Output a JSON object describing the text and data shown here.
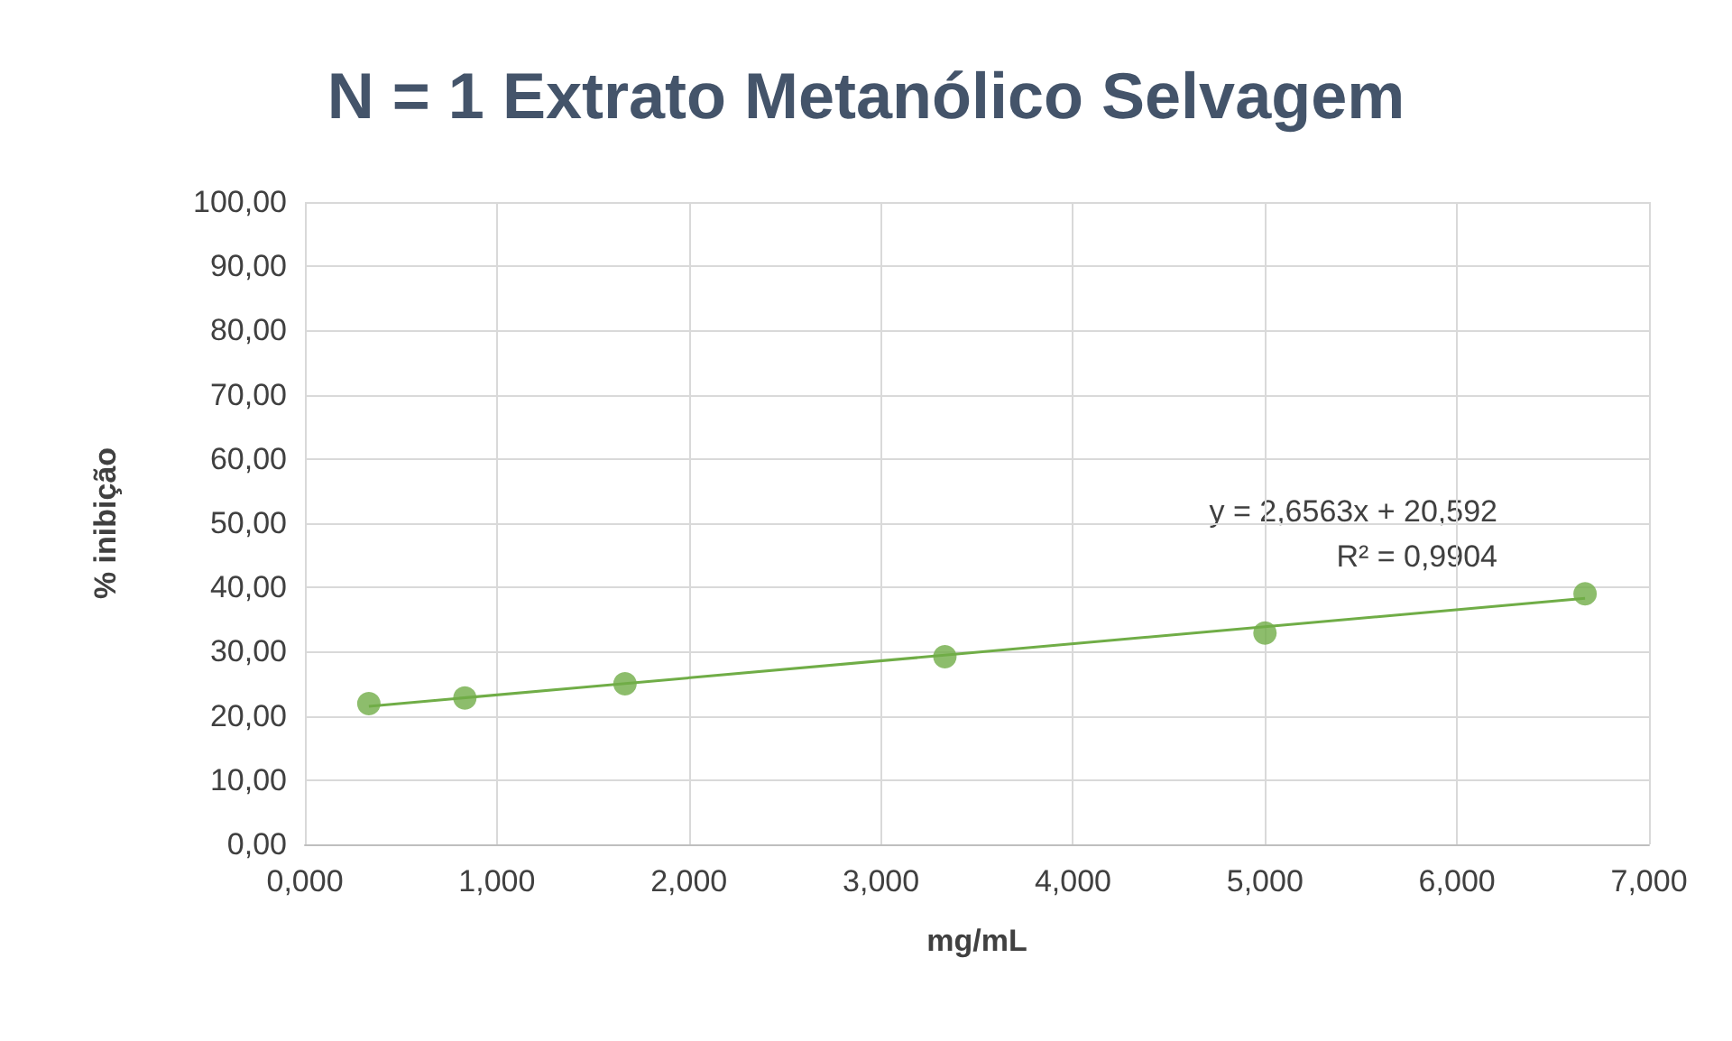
{
  "chart_data": {
    "type": "scatter",
    "title": "N = 1 Extrato Metanólico Selvagem",
    "xlabel": "mg/mL",
    "ylabel": "% inibição",
    "x": [
      0.333,
      0.833,
      1.667,
      3.333,
      5.0,
      6.667
    ],
    "series": [
      {
        "type": "scatter",
        "color": "#70ad47",
        "values": [
          21.9,
          22.8,
          25.0,
          29.2,
          32.9,
          39.0
        ],
        "marker": "circle"
      },
      {
        "type": "line",
        "color": "#70ad47",
        "x": [
          0.333,
          6.667
        ],
        "values": [
          21.5,
          38.3
        ],
        "marker": "none",
        "line_style": "solid"
      }
    ],
    "annotations": [
      "y = 2,6563x + 20,592",
      "R² = 0,9904"
    ],
    "xlim": [
      0,
      7
    ],
    "xticks": [
      {
        "value": 0,
        "label": "0,000"
      },
      {
        "value": 1,
        "label": "1,000"
      },
      {
        "value": 2,
        "label": "2,000"
      },
      {
        "value": 3,
        "label": "3,000"
      },
      {
        "value": 4,
        "label": "4,000"
      },
      {
        "value": 5,
        "label": "5,000"
      },
      {
        "value": 6,
        "label": "6,000"
      },
      {
        "value": 7,
        "label": "7,000"
      }
    ],
    "ylim": [
      0,
      100
    ],
    "yticks": [
      {
        "value": 0,
        "label": "0,00"
      },
      {
        "value": 10,
        "label": "10,00"
      },
      {
        "value": 20,
        "label": "20,00"
      },
      {
        "value": 30,
        "label": "30,00"
      },
      {
        "value": 40,
        "label": "40,00"
      },
      {
        "value": 50,
        "label": "50,00"
      },
      {
        "value": 60,
        "label": "60,00"
      },
      {
        "value": 70,
        "label": "70,00"
      },
      {
        "value": 80,
        "label": "80,00"
      },
      {
        "value": 90,
        "label": "90,00"
      },
      {
        "value": 100,
        "label": "100,00"
      }
    ],
    "grid": true
  }
}
